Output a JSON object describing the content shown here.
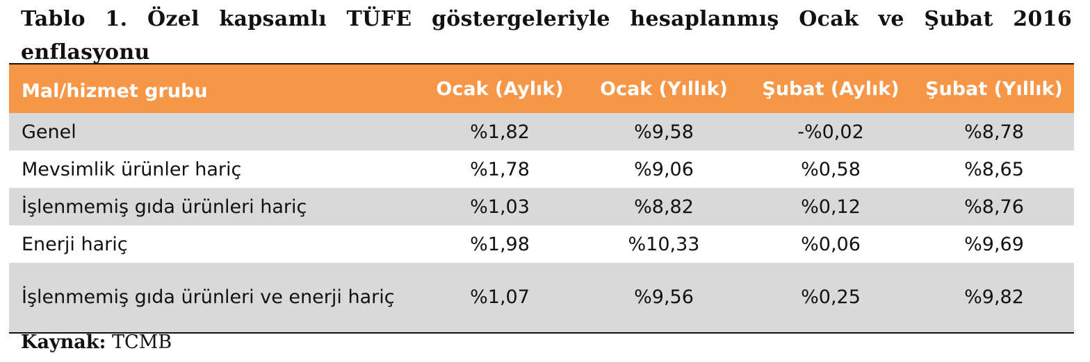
{
  "title": "Tablo 1. Özel kapsamlı TÜFE göstergeleriyle hesaplanmış Ocak ve Şubat 2016 enflasyonu",
  "table": {
    "headers": [
      "Mal/hizmet grubu",
      "Ocak (Aylık)",
      "Ocak (Yıllık)",
      "Şubat (Aylık)",
      "Şubat (Yıllık)"
    ],
    "rows": [
      [
        "Genel",
        "%1,82",
        "%9,58",
        "-%0,02",
        "%8,78"
      ],
      [
        "Mevsimlik ürünler hariç",
        "%1,78",
        "%9,06",
        "%0,58",
        "%8,65"
      ],
      [
        "İşlenmemiş gıda ürünleri hariç",
        "%1,03",
        "%8,82",
        "%0,12",
        "%8,76"
      ],
      [
        "Enerji hariç",
        "%1,98",
        "%10,33",
        "%0,06",
        "%9,69"
      ],
      [
        "İşlenmemiş gıda ürünleri ve enerji hariç",
        "%1,07",
        "%9,56",
        "%0,25",
        "%9,82"
      ]
    ]
  },
  "source": {
    "label": "Kaynak:",
    "value": "TCMB"
  },
  "colors": {
    "header_bg": "#f79646",
    "row_shade": "#d9d9d9"
  }
}
